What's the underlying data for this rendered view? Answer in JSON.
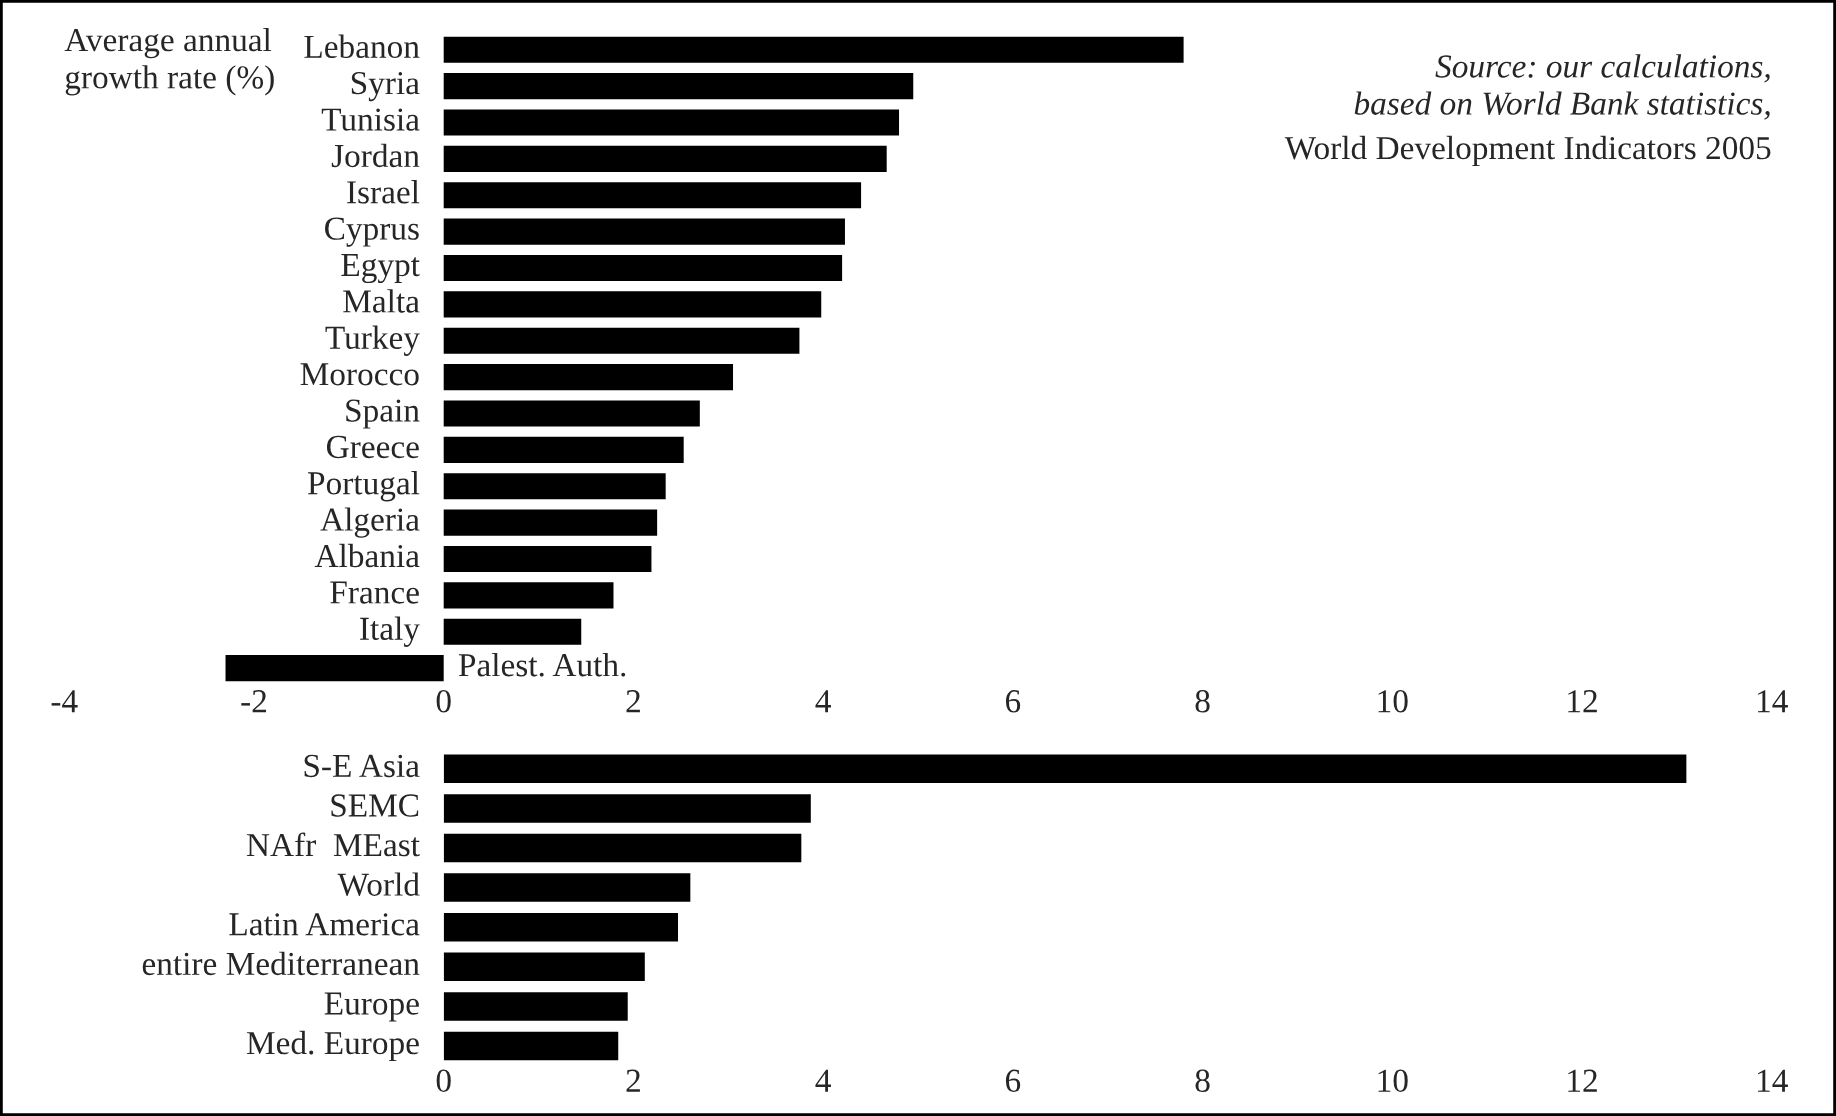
{
  "chart_data": [
    {
      "type": "bar",
      "orientation": "horizontal",
      "ylabel": "Average annual growth rate (%)",
      "annotations": [
        "Source: our calculations,\nbased on World Bank statistics,",
        "World Development Indicators 2005"
      ],
      "categories": [
        "Lebanon",
        "Syria",
        "Tunisia",
        "Jordan",
        "Israel",
        "Cyprus",
        "Egypt",
        "Malta",
        "Turkey",
        "Morocco",
        "Spain",
        "Greece",
        "Portugal",
        "Algeria",
        "Albania",
        "France",
        "Italy",
        "Palest. Auth."
      ],
      "values": [
        7.8,
        4.95,
        4.8,
        4.67,
        4.4,
        4.23,
        4.2,
        3.98,
        3.75,
        3.05,
        2.7,
        2.53,
        2.34,
        2.25,
        2.19,
        1.79,
        1.45,
        -2.3
      ],
      "color": "#000000",
      "xlim": [
        -4,
        14
      ],
      "xticks": [
        -4,
        -2,
        0,
        2,
        4,
        6,
        8,
        10,
        12,
        14
      ],
      "grid": false,
      "legend": false
    },
    {
      "type": "bar",
      "orientation": "horizontal",
      "categories": [
        "S-E Asia",
        "SEMC",
        "NAfr  MEast",
        "World",
        "Latin America",
        "entire Mediterranean",
        "Europe",
        "Med. Europe"
      ],
      "values": [
        13.1,
        3.87,
        3.77,
        2.6,
        2.47,
        2.12,
        1.94,
        1.84
      ],
      "color": "#000000",
      "xlim": [
        0,
        14
      ],
      "xticks": [
        0,
        2,
        4,
        6,
        8,
        10,
        12,
        14
      ],
      "grid": false,
      "legend": false
    }
  ]
}
